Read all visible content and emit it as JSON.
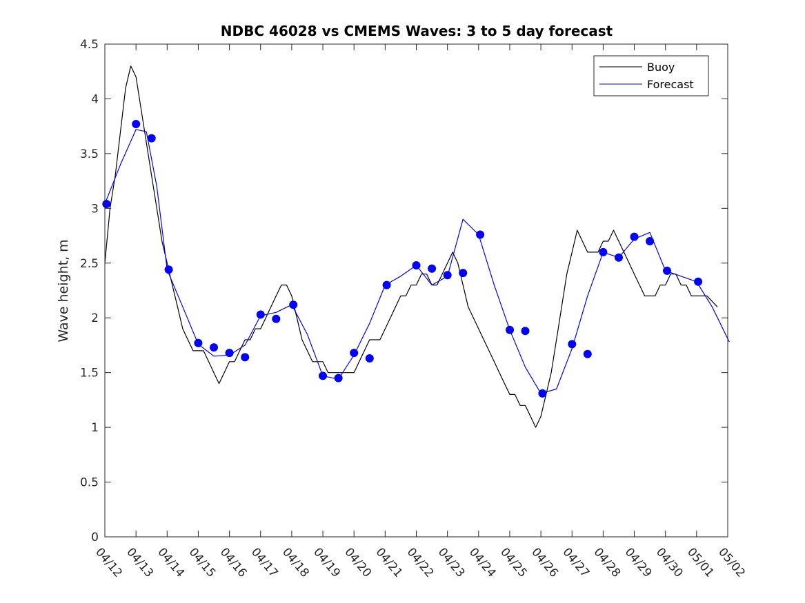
{
  "chart_data": {
    "type": "line",
    "title": "NDBC 46028 vs CMEMS Waves: 3 to 5 day forecast",
    "xlabel": "",
    "ylabel": "Wave height, m",
    "x_unit": "days",
    "xlim": [
      "04/12",
      "05/02"
    ],
    "ylim": [
      0,
      4.5
    ],
    "yticks": [
      0,
      0.5,
      1,
      1.5,
      2,
      2.5,
      3,
      3.5,
      4,
      4.5
    ],
    "ytick_labels": [
      "0",
      "0.5",
      "1",
      "1.5",
      "2",
      "2.5",
      "3",
      "3.5",
      "4",
      "4.5"
    ],
    "xtick_labels": [
      "04/12",
      "04/13",
      "04/14",
      "04/15",
      "04/16",
      "04/17",
      "04/18",
      "04/19",
      "04/20",
      "04/21",
      "04/22",
      "04/23",
      "04/24",
      "04/25",
      "04/26",
      "04/27",
      "04/28",
      "04/29",
      "04/30",
      "05/01",
      "05/02"
    ],
    "grid": false,
    "legend": {
      "position": "top-right",
      "entries": [
        "Buoy",
        "Forecast"
      ]
    },
    "colors": {
      "buoy": "#000000",
      "forecast": "#0000ff",
      "axis": "#262626"
    },
    "series": [
      {
        "name": "Buoy",
        "color": "#000000",
        "x": [
          "04/12",
          "04/12",
          "04/12",
          "04/12",
          "04/12",
          "04/12",
          "04/13",
          "04/13",
          "04/13",
          "04/13",
          "04/13",
          "04/13",
          "04/14",
          "04/14",
          "04/14",
          "04/14",
          "04/14",
          "04/14",
          "04/15",
          "04/15",
          "04/15",
          "04/15",
          "04/15",
          "04/15",
          "04/16",
          "04/16",
          "04/16",
          "04/16",
          "04/16",
          "04/16",
          "04/17",
          "04/17",
          "04/17",
          "04/17",
          "04/17",
          "04/17",
          "04/18",
          "04/18",
          "04/18",
          "04/18",
          "04/18",
          "04/18",
          "04/19",
          "04/19",
          "04/19",
          "04/19",
          "04/19",
          "04/19",
          "04/20",
          "04/20",
          "04/20",
          "04/20",
          "04/20",
          "04/20",
          "04/21",
          "04/21",
          "04/21",
          "04/21",
          "04/21",
          "04/21",
          "04/22",
          "04/22",
          "04/22",
          "04/22",
          "04/22",
          "04/22",
          "04/23",
          "04/23",
          "04/23",
          "04/23",
          "04/23",
          "04/23",
          "04/24",
          "04/24",
          "04/24",
          "04/24",
          "04/24",
          "04/24",
          "04/25",
          "04/25",
          "04/25",
          "04/25",
          "04/25",
          "04/25",
          "04/26",
          "04/26",
          "04/26",
          "04/26",
          "04/26",
          "04/26",
          "04/27",
          "04/27",
          "04/27",
          "04/27",
          "04/27",
          "04/27",
          "04/28",
          "04/28",
          "04/28",
          "04/28",
          "04/28",
          "04/28",
          "04/29",
          "04/29",
          "04/29",
          "04/29",
          "04/29",
          "04/29",
          "04/30",
          "04/30",
          "04/30",
          "04/30",
          "04/30",
          "04/30",
          "05/01",
          "05/01",
          "05/01"
        ],
        "values": [
          2.5,
          3.0,
          3.3,
          3.7,
          4.1,
          4.3,
          4.2,
          3.9,
          3.6,
          3.3,
          3.0,
          2.7,
          2.5,
          2.3,
          2.1,
          1.9,
          1.8,
          1.7,
          1.7,
          1.7,
          1.6,
          1.5,
          1.4,
          1.5,
          1.6,
          1.6,
          1.7,
          1.8,
          1.8,
          1.9,
          1.9,
          2.0,
          2.1,
          2.2,
          2.3,
          2.3,
          2.2,
          2.0,
          1.8,
          1.7,
          1.6,
          1.6,
          1.6,
          1.5,
          1.5,
          1.5,
          1.5,
          1.5,
          1.5,
          1.6,
          1.7,
          1.8,
          1.8,
          1.8,
          1.9,
          2.0,
          2.1,
          2.2,
          2.2,
          2.3,
          2.3,
          2.4,
          2.4,
          2.3,
          2.3,
          2.4,
          2.5,
          2.6,
          2.5,
          2.3,
          2.1,
          2.0,
          1.9,
          1.8,
          1.7,
          1.6,
          1.5,
          1.4,
          1.3,
          1.3,
          1.2,
          1.2,
          1.1,
          1.0,
          1.1,
          1.3,
          1.5,
          1.8,
          2.1,
          2.4,
          2.6,
          2.8,
          2.7,
          2.6,
          2.6,
          2.6,
          2.7,
          2.7,
          2.8,
          2.7,
          2.6,
          2.5,
          2.4,
          2.3,
          2.2,
          2.2,
          2.2,
          2.3,
          2.3,
          2.4,
          2.4,
          2.3,
          2.3,
          2.2,
          2.2,
          2.2,
          2.1
        ]
      },
      {
        "name": "Forecast",
        "color": "#0000ff",
        "x": [
          "04/12",
          "04/12",
          "04/13",
          "04/13",
          "04/13",
          "04/14",
          "04/14",
          "04/15",
          "04/15",
          "04/16",
          "04/16",
          "04/17",
          "04/17",
          "04/18",
          "04/18",
          "04/19",
          "04/19",
          "04/20",
          "04/20",
          "04/21",
          "04/21",
          "04/22",
          "04/22",
          "04/23",
          "04/23",
          "04/24",
          "04/24",
          "04/25",
          "04/25",
          "04/26",
          "04/26",
          "04/27",
          "04/27",
          "04/28",
          "04/28",
          "04/29",
          "04/29",
          "04/30",
          "04/30",
          "05/01",
          "05/01",
          "05/02"
        ],
        "values": [
          3.04,
          3.4,
          3.72,
          3.7,
          3.2,
          2.44,
          2.1,
          1.76,
          1.65,
          1.66,
          1.75,
          2.02,
          2.05,
          2.12,
          1.85,
          1.47,
          1.44,
          1.66,
          1.95,
          2.3,
          2.38,
          2.48,
          2.3,
          2.38,
          2.9,
          2.76,
          2.3,
          1.89,
          1.55,
          1.31,
          1.35,
          1.72,
          2.2,
          2.6,
          2.55,
          2.72,
          2.78,
          2.43,
          2.38,
          2.33,
          2.1,
          1.78
        ]
      }
    ],
    "forecast_points": {
      "x": [
        "04/12",
        "04/13",
        "04/13",
        "04/14",
        "04/15",
        "04/15",
        "04/16",
        "04/16",
        "04/17",
        "04/17",
        "04/18",
        "04/19",
        "04/19",
        "04/20",
        "04/20",
        "04/21",
        "04/22",
        "04/22",
        "04/23",
        "04/23",
        "04/24",
        "04/25",
        "04/25",
        "04/26",
        "04/27",
        "04/27",
        "04/28",
        "04/28",
        "04/29",
        "04/29",
        "04/30",
        "05/01"
      ],
      "values": [
        3.04,
        3.77,
        3.64,
        2.44,
        1.77,
        1.73,
        1.68,
        1.64,
        2.03,
        1.99,
        2.12,
        1.47,
        1.45,
        1.68,
        1.63,
        2.3,
        2.48,
        2.45,
        2.39,
        2.41,
        2.76,
        1.89,
        1.88,
        1.31,
        1.76,
        1.67,
        2.6,
        2.55,
        2.74,
        2.7,
        2.43,
        2.33
      ]
    }
  }
}
